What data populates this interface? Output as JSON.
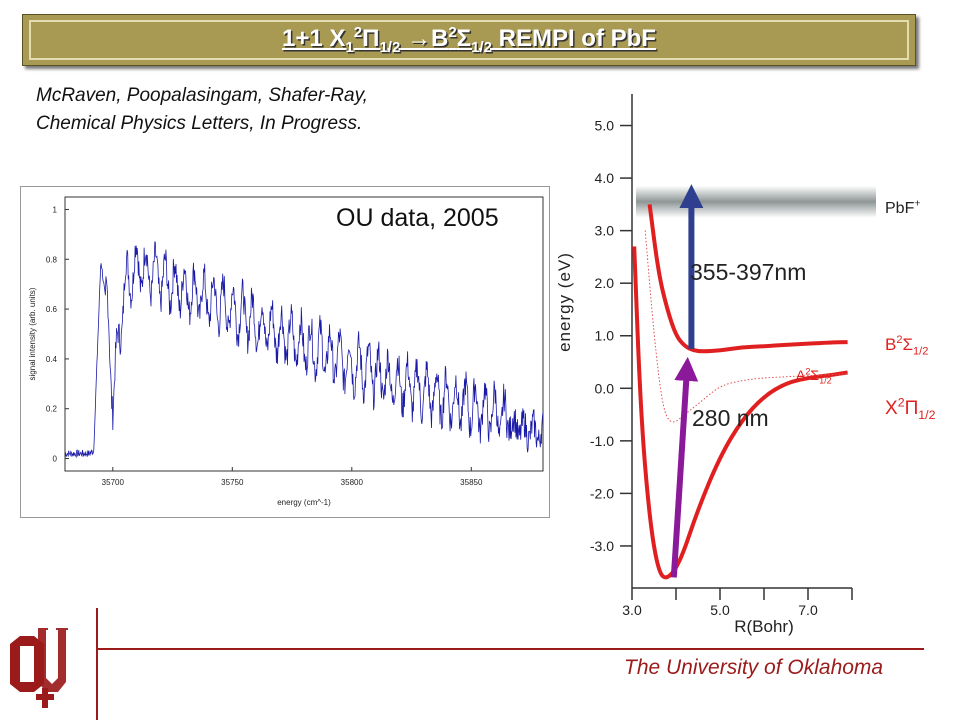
{
  "slide": {
    "title": {
      "prefix": "1+1   X",
      "x_sub": "1",
      "x_sup": "2",
      "x_sym": "Π",
      "x_term_sub": "1/2",
      "arrow": " →B",
      "b_sup": "2",
      "b_sym": "Σ",
      "b_sub": "1/2",
      "suffix": " REMPI of PbF"
    },
    "citation_line1": "McRaven, Poopalasingam, Shafer-Ray,",
    "citation_line2": "Chemical Physics Letters, In Progress.",
    "footer": "The University of Oklahoma",
    "colors": {
      "title_bg": "#a89a52",
      "accent": "#9b1b1b",
      "red_curve": "#e02020",
      "blue_arrow": "#2f3f8f",
      "purple_arrow": "#8b1a9b"
    }
  },
  "chart_data": [
    {
      "type": "line",
      "annotation": "OU data, 2005",
      "xlabel": "energy (cm^-1)",
      "ylabel": "signal intensity (arb. units)",
      "xlim": [
        35680,
        35880
      ],
      "ylim": [
        -0.05,
        1.05
      ],
      "xticks": [
        "35700",
        "35750",
        "35800",
        "35850"
      ],
      "yticks": [
        "0",
        "0.2",
        "0.4",
        "0.6",
        "0.8",
        "1"
      ],
      "series": [
        {
          "x": [
            35680,
            35690,
            35692,
            35695,
            35698,
            35700,
            35705,
            35710,
            35720,
            35730,
            35740,
            35750,
            35760,
            35770,
            35780,
            35790,
            35800,
            35810,
            35820,
            35830,
            35840,
            35850,
            35860,
            35870,
            35880
          ],
          "values": [
            0.02,
            0.02,
            0.03,
            0.8,
            0.55,
            0.25,
            0.7,
            0.78,
            0.72,
            0.68,
            0.64,
            0.6,
            0.55,
            0.5,
            0.46,
            0.42,
            0.38,
            0.34,
            0.3,
            0.27,
            0.24,
            0.21,
            0.18,
            0.12,
            0.1
          ]
        }
      ]
    },
    {
      "type": "line",
      "xlabel": "R(Bohr)",
      "ylabel": "energy (eV)",
      "xlim": [
        3.0,
        8.0
      ],
      "ylim": [
        -3.8,
        5.6
      ],
      "xticks": [
        "3.0",
        "5.0",
        "7.0"
      ],
      "yticks": [
        "5.0",
        "4.0",
        "3.0",
        "2.0",
        "1.0",
        "0.0",
        "-1.0",
        "-2.0",
        "-3.0"
      ],
      "series": [
        {
          "name": "X²Π1/2",
          "x": [
            3.05,
            3.2,
            3.4,
            3.6,
            3.8,
            4.1,
            4.5,
            5.0,
            5.5,
            6.0,
            6.5,
            7.0,
            7.5,
            7.9
          ],
          "values": [
            2.7,
            -0.5,
            -2.5,
            -3.5,
            -3.65,
            -3.3,
            -2.3,
            -1.3,
            -0.6,
            -0.15,
            0.1,
            0.2,
            0.25,
            0.3
          ]
        },
        {
          "name": "B²Σ1/2",
          "x": [
            3.4,
            3.6,
            3.8,
            4.0,
            4.2,
            4.4,
            4.6,
            5.0,
            5.5,
            6.0,
            6.5,
            7.0,
            7.5,
            7.9
          ],
          "values": [
            3.5,
            2.2,
            1.5,
            1.0,
            0.8,
            0.72,
            0.7,
            0.72,
            0.78,
            0.8,
            0.83,
            0.85,
            0.87,
            0.88
          ]
        },
        {
          "name": "A²Σ1/2",
          "x": [
            3.3,
            3.5,
            3.7,
            3.9,
            4.2,
            4.5,
            5.0,
            5.5,
            6.0,
            6.5,
            7.0,
            7.5,
            7.9
          ],
          "values": [
            3.0,
            1.0,
            -0.4,
            -0.7,
            -0.5,
            -0.3,
            0.05,
            0.15,
            0.2,
            0.22,
            0.24,
            0.26,
            0.28
          ]
        }
      ],
      "ion_threshold": {
        "label": "PbF⁺",
        "value": 3.55
      },
      "transitions": [
        {
          "label": "280 nm",
          "from": -3.6,
          "to": 0.75
        },
        {
          "label": "355-397nm",
          "from": 0.75,
          "to": 4.0
        }
      ],
      "curve_labels": {
        "x_state": {
          "main": "X",
          "sup": "2",
          "sym": "Π",
          "sub": "1/2"
        },
        "b_state": {
          "main": "B",
          "sup": "2",
          "sym": "Σ",
          "sub": "1/2"
        },
        "a_state": {
          "main": "A",
          "sup": "2",
          "sym": "Σ",
          "sub": "1/2"
        },
        "ion": {
          "main": "PbF",
          "sup": "+"
        }
      }
    }
  ]
}
